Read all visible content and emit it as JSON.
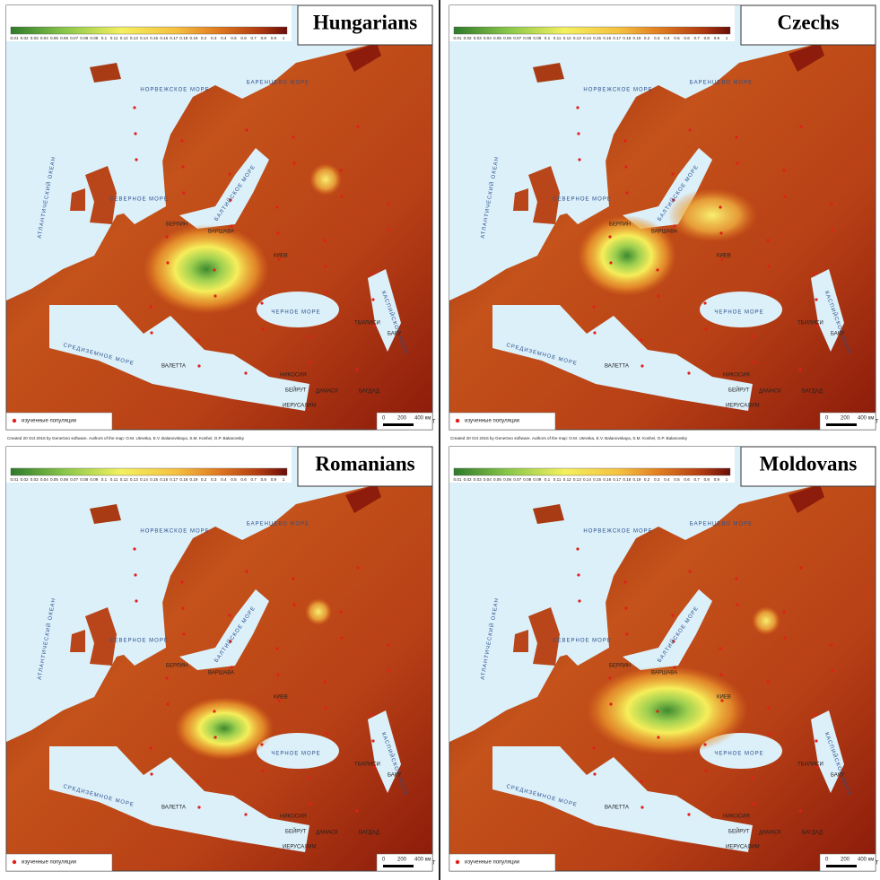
{
  "panels": [
    {
      "title": "Hungarians"
    },
    {
      "title": "Czechs"
    },
    {
      "title": "Romanians"
    },
    {
      "title": "Moldovans"
    }
  ],
  "color_scale": [
    "0.01",
    "0.02",
    "0.03",
    "0.04",
    "0.05",
    "0.06",
    "0.07",
    "0.08",
    "0.09",
    "0.1",
    "0.11",
    "0.12",
    "0.13",
    "0.14",
    "0.15",
    "0.16",
    "0.17",
    "0.18",
    "0.19",
    "0.2",
    "0.3",
    "0.4",
    "0.5",
    "0.6",
    "0.7",
    "0.8",
    "0.9",
    "1"
  ],
  "legend": "изученные популяции",
  "scale_bar": [
    "0",
    "200",
    "400 км"
  ],
  "credit": "Created 20 Oct 2016 by GeneGeo software. Authors of the map: O.M. Utevska, E.V. Balanovskaya, S.M. Koshel, O.P. Balanovsky",
  "seas": [
    "НОРВЕЖСКОЕ МОРЕ",
    "БАРЕНЦЕВО МОРЕ",
    "СЕВЕРНОЕ МОРЕ",
    "БАЛТИЙСКОЕ МОРЕ",
    "ЧЕРНОЕ МОРЕ",
    "СРЕДИЗЕМНОЕ МОРЕ",
    "КАСПИЙСКОЕ МОРЕ",
    "АТЛАНТИЧЕСКИЙ ОКЕАН"
  ],
  "cities": [
    "ВАЛЕТТА",
    "НИКОСИЯ",
    "БЕЙРУТ",
    "ИЕРУСАЛИМ",
    "ДАМАСК",
    "БАГДАД",
    "КУВЕЙТ",
    "БАКУ",
    "ТБИЛИСИ",
    "КИЕВ",
    "ВАРШАВА",
    "БЕРЛИН"
  ]
}
